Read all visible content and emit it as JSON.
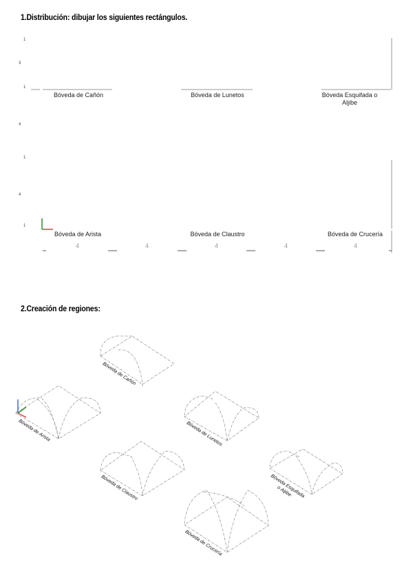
{
  "section1": {
    "title": "1.Distribución: dibujar los siguientes rectángulos.",
    "row1_labels": [
      "Bóveda de Cañón",
      "Bóveda de Lunetos",
      "Bóveda Esquifada o Aljibe"
    ],
    "row2_labels": [
      "Bóveda de Arista",
      "Bóveda de Claustro",
      "Bóveda de Crucería"
    ],
    "dimensions": [
      "4",
      "4",
      "4",
      "4",
      "4"
    ],
    "side_marks": [
      "1",
      "3",
      "1",
      "4",
      "1",
      "4",
      "1"
    ]
  },
  "section2": {
    "title": "2.Creación de regiones:",
    "vault_labels": {
      "canon": "Bóveda de Cañón",
      "arista": "Bóveda de Arista",
      "lunetos": "Bóveda de Lunetos",
      "claustro": "Bóveda de Claustro",
      "esquifada": "Bóveda Esquifada o Aljibe",
      "cruceria": "Bóveda de Crucería"
    }
  },
  "colors": {
    "x_axis": "#d04040",
    "y_axis": "#2e8b2e",
    "z_axis": "#3a6fd8",
    "lines": "#999999"
  }
}
